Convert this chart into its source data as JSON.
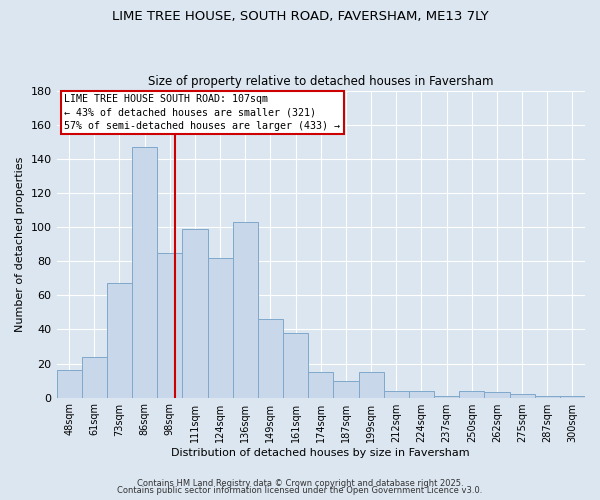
{
  "title_line1": "LIME TREE HOUSE, SOUTH ROAD, FAVERSHAM, ME13 7LY",
  "title_line2": "Size of property relative to detached houses in Faversham",
  "xlabel": "Distribution of detached houses by size in Faversham",
  "ylabel": "Number of detached properties",
  "categories": [
    "48sqm",
    "61sqm",
    "73sqm",
    "86sqm",
    "98sqm",
    "111sqm",
    "124sqm",
    "136sqm",
    "149sqm",
    "161sqm",
    "174sqm",
    "187sqm",
    "199sqm",
    "212sqm",
    "224sqm",
    "237sqm",
    "250sqm",
    "262sqm",
    "275sqm",
    "287sqm",
    "300sqm"
  ],
  "values": [
    16,
    24,
    67,
    147,
    85,
    99,
    82,
    103,
    46,
    38,
    15,
    10,
    15,
    4,
    4,
    1,
    4,
    3,
    2,
    1,
    1
  ],
  "bar_color": "#c8d8ea",
  "bar_edge_color": "#7fa8cc",
  "vline_color": "#cc0000",
  "annotation_line1": "LIME TREE HOUSE SOUTH ROAD: 107sqm",
  "annotation_line2": "← 43% of detached houses are smaller (321)",
  "annotation_line3": "57% of semi-detached houses are larger (433) →",
  "annotation_box_facecolor": "#ffffff",
  "annotation_box_edgecolor": "#cc0000",
  "ylim": [
    0,
    180
  ],
  "yticks": [
    0,
    20,
    40,
    60,
    80,
    100,
    120,
    140,
    160,
    180
  ],
  "background_color": "#dce6f0",
  "plot_bg_color": "#dce6f0",
  "footer_line1": "Contains HM Land Registry data © Crown copyright and database right 2025.",
  "footer_line2": "Contains public sector information licensed under the Open Government Licence v3.0.",
  "grid_color": "#ffffff"
}
